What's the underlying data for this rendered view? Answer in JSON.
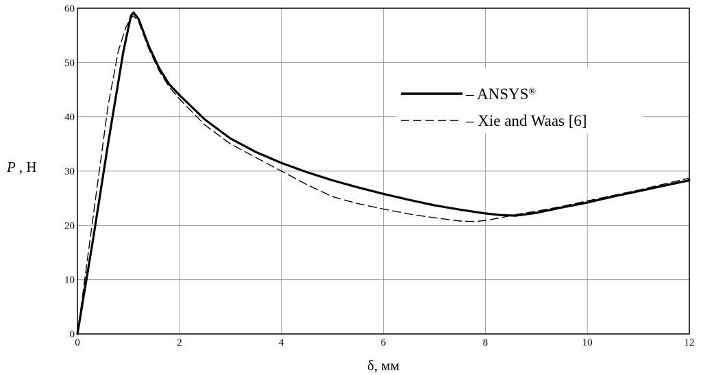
{
  "chart_data": {
    "type": "line",
    "xlabel": "δ, мм",
    "ylabel": "P , Н",
    "ylabel_parts": {
      "symbol": "P",
      "unit": ", Н"
    },
    "xlim": [
      0,
      12
    ],
    "ylim": [
      0,
      60
    ],
    "x_ticks": [
      "0",
      "2",
      "4",
      "6",
      "8",
      "10",
      "12"
    ],
    "y_ticks": [
      "0",
      "10",
      "20",
      "30",
      "40",
      "50",
      "60"
    ],
    "x_tick_values": [
      0,
      2,
      4,
      6,
      8,
      10,
      12
    ],
    "y_tick_values": [
      0,
      10,
      20,
      30,
      40,
      50,
      60
    ],
    "grid": true,
    "legend_position": "top-right",
    "series": [
      {
        "name": "– ANSYS®",
        "name_parts": {
          "main": "– ANSYS",
          "sup": "®"
        },
        "style": "solid",
        "color": "#000000",
        "x": [
          0,
          0.3,
          0.6,
          0.9,
          1.05,
          1.1,
          1.2,
          1.4,
          1.6,
          1.8,
          2.0,
          2.5,
          3.0,
          3.5,
          4.0,
          4.5,
          5.0,
          5.5,
          6.0,
          6.5,
          7.0,
          7.5,
          8.0,
          8.3,
          8.6,
          9.0,
          9.5,
          10.0,
          10.5,
          11.0,
          11.5,
          12.0
        ],
        "y": [
          0,
          17,
          35,
          52,
          58.6,
          59.2,
          58,
          53,
          49,
          46,
          44,
          39.5,
          36,
          33.5,
          31.5,
          29.8,
          28.3,
          27,
          25.8,
          24.7,
          23.7,
          22.9,
          22.2,
          21.9,
          21.8,
          22.3,
          23.3,
          24.2,
          25.3,
          26.3,
          27.3,
          28.3
        ]
      },
      {
        "name": "– Xie and Waas [6]",
        "name_parts": {
          "main": "– Xie and Waas [6]",
          "sup": ""
        },
        "style": "dashed",
        "color": "#000000",
        "x": [
          0,
          0.3,
          0.6,
          0.8,
          0.95,
          1.05,
          1.1,
          1.2,
          1.4,
          1.6,
          1.8,
          2.0,
          2.5,
          3.0,
          3.5,
          4.0,
          4.5,
          5.0,
          5.5,
          6.0,
          6.5,
          7.0,
          7.5,
          7.8,
          8.0,
          8.3,
          8.6,
          9.0,
          9.5,
          10.0,
          10.5,
          11.0,
          11.5,
          12.0
        ],
        "y": [
          0,
          21,
          42,
          52,
          56.5,
          58.2,
          58.6,
          57.5,
          52.5,
          48.5,
          45.5,
          43.3,
          38.5,
          35,
          32.5,
          30,
          27.5,
          25.3,
          24,
          23,
          22.1,
          21.4,
          20.8,
          20.7,
          20.9,
          21.4,
          22,
          22.6,
          23.5,
          24.5,
          25.5,
          26.5,
          27.6,
          28.7
        ]
      }
    ]
  }
}
